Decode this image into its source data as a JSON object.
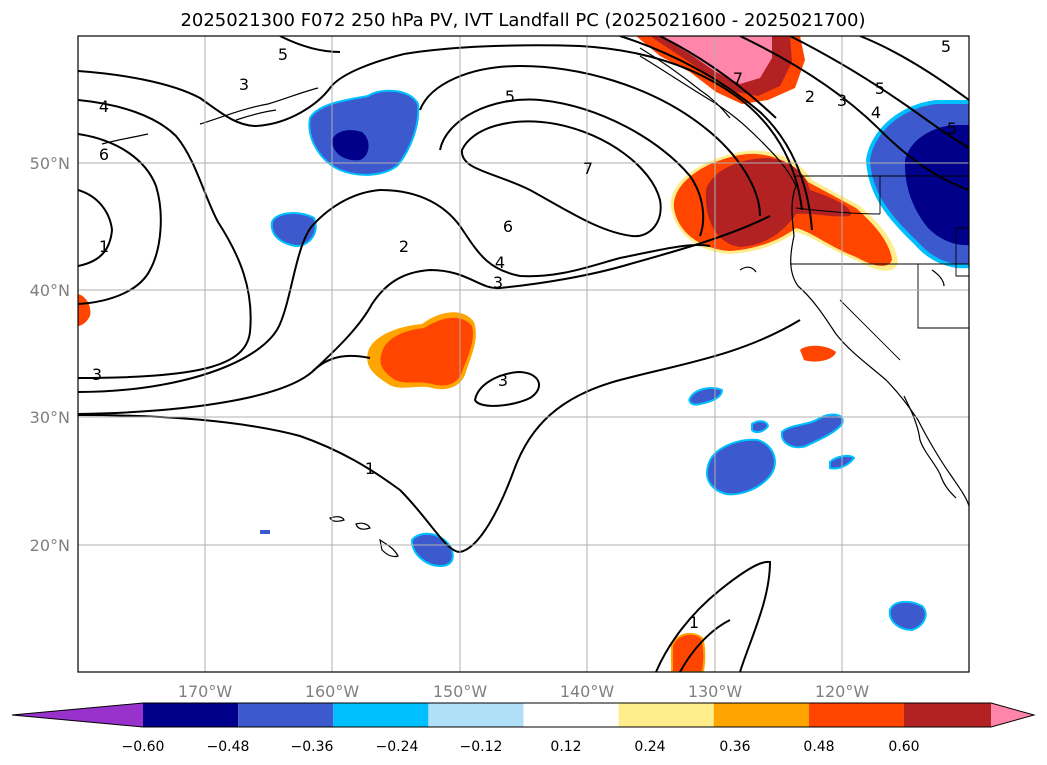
{
  "figure": {
    "title": "2025021300 F072 250 hPa PV, IVT Landfall PC (2025021600 - 2025021700)"
  },
  "map": {
    "lon_ticks": [
      "170°W",
      "160°W",
      "150°W",
      "140°W",
      "130°W",
      "120°W"
    ],
    "lat_ticks": [
      "50°N",
      "40°N",
      "30°N",
      "20°N"
    ]
  },
  "colorbar": {
    "levels": [
      "−0.60",
      "−0.48",
      "−0.36",
      "−0.24",
      "−0.12",
      "0.12",
      "0.24",
      "0.36",
      "0.48",
      "0.60"
    ],
    "colors": [
      "#9932cc",
      "#00008b",
      "#3c5acd",
      "#00bfff",
      "#b0e0f8",
      "#ffffff",
      "#ffec8b",
      "#ffa500",
      "#ff4500",
      "#b22222",
      "#ff85aa"
    ]
  },
  "contour_labels": [
    "5",
    "3",
    "4",
    "6",
    "7",
    "1",
    "2",
    "5",
    "3",
    "6",
    "7",
    "2",
    "4",
    "3",
    "3",
    "1",
    "1",
    "1",
    "2",
    "3",
    "4",
    "5",
    "5",
    "5"
  ]
}
